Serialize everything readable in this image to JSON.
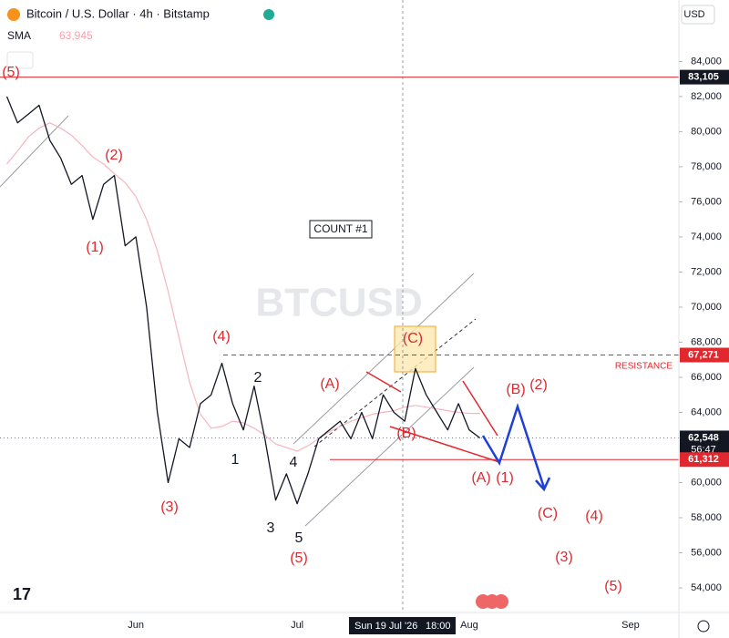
{
  "chart_data": {
    "type": "line",
    "title": "Bitcoin / U.S. Dollar · 4h · Bitstamp",
    "watermark": "BTCUSD",
    "currency": "USD",
    "categories": [
      null,
      null,
      null,
      null,
      null,
      null,
      null,
      null,
      null,
      null,
      null,
      null,
      "Jun",
      null,
      null,
      null,
      null,
      null,
      null,
      null,
      null,
      null,
      null,
      null,
      null,
      null,
      null,
      "Jul",
      null,
      null,
      null,
      null,
      null,
      null,
      null,
      null,
      null,
      null,
      null,
      null,
      null,
      null,
      null,
      "Aug",
      null,
      null,
      null,
      null,
      null,
      null,
      null,
      null,
      null,
      null,
      null,
      null,
      null,
      null,
      "Sep",
      null,
      null,
      null,
      null
    ],
    "series": [
      {
        "color": "#131722",
        "values": [
          82000,
          80500,
          81000,
          81500,
          79500,
          78500,
          77000,
          77500,
          75000,
          77000,
          77500,
          73500,
          74000,
          70000,
          64000,
          60000,
          62500,
          62000,
          64500,
          65000,
          66800,
          64500,
          63000,
          65500,
          62500,
          59000,
          60500,
          58800,
          60500,
          62500,
          63000,
          63500,
          62500,
          64000,
          62500,
          65000,
          64000,
          63500,
          66500,
          65000,
          64000,
          63000,
          64500,
          63000,
          62548,
          null,
          null,
          null,
          null,
          null,
          null,
          null,
          null,
          null,
          null,
          null,
          null,
          null,
          null,
          null,
          null,
          null,
          null
        ]
      },
      {
        "name": "SMA",
        "color": "#f7b5c0",
        "last_label": "63,945",
        "last_value": 63945,
        "values": [
          78150,
          78900,
          79700,
          80200,
          80500,
          80200,
          79800,
          79200,
          78550,
          78150,
          77600,
          77100,
          76300,
          75000,
          73200,
          70900,
          68300,
          65700,
          63900,
          63100,
          63200,
          63500,
          63400,
          63100,
          62700,
          62200,
          62000,
          61800,
          62100,
          62500,
          62900,
          63200,
          63500,
          63700,
          63900,
          64000,
          64100,
          64300,
          64400,
          64300,
          64200,
          64100,
          64000,
          63950,
          63945,
          null,
          null,
          null,
          null,
          null,
          null,
          null,
          null,
          null,
          null,
          null,
          null,
          null,
          null,
          null,
          null,
          null,
          null
        ]
      }
    ],
    "ylim": [
      52600,
      87500
    ],
    "yticks": [
      {
        "value": 54000,
        "label": "54,000"
      },
      {
        "value": 56000,
        "label": "56,000"
      },
      {
        "value": 58000,
        "label": "58,000"
      },
      {
        "value": 60000,
        "label": "60,000"
      },
      {
        "value": 64000,
        "label": "64,000"
      },
      {
        "value": 66000,
        "label": "66,000"
      },
      {
        "value": 68000,
        "label": "68,000"
      },
      {
        "value": 70000,
        "label": "70,000"
      },
      {
        "value": 72000,
        "label": "72,000"
      },
      {
        "value": 74000,
        "label": "74,000"
      },
      {
        "value": 76000,
        "label": "76,000"
      },
      {
        "value": 78000,
        "label": "78,000"
      },
      {
        "value": 80000,
        "label": "80,000"
      },
      {
        "value": 82000,
        "label": "82,000"
      },
      {
        "value": 84000,
        "label": "84,000"
      }
    ],
    "levels": [
      {
        "value": 83105,
        "label": "83,105",
        "color": "#e0282e",
        "tag": "#131722",
        "style": "solid"
      },
      {
        "value": 67271,
        "label": "67,271",
        "color": "#e0282e",
        "tag": "#e0282e",
        "style": "dashed"
      },
      {
        "value": 62548,
        "label": "62,548",
        "color": "#787b86",
        "tag": "#131722",
        "style": "dotted",
        "countdown": "56:47"
      },
      {
        "value": 61312,
        "label": "61,312",
        "color": "#e0282e",
        "tag": "#e0282e",
        "style": "solid"
      }
    ],
    "count_label": "COUNT #1",
    "resistance_label": "RESISTANCE",
    "crosshair": {
      "date": "Sun 19 Jul '26",
      "time": "18:00"
    },
    "annotations": [
      {
        "text": "(5)",
        "color": "#e0282e"
      },
      {
        "text": "(2)",
        "color": "#e0282e"
      },
      {
        "text": "(1)",
        "color": "#e0282e"
      },
      {
        "text": "(3)",
        "color": "#e0282e"
      },
      {
        "text": "(4)",
        "color": "#e0282e"
      },
      {
        "text": "2",
        "color": "#131722"
      },
      {
        "text": "1",
        "color": "#131722"
      },
      {
        "text": "4",
        "color": "#131722"
      },
      {
        "text": "3",
        "color": "#131722"
      },
      {
        "text": "5",
        "color": "#131722"
      },
      {
        "text": "(5)",
        "color": "#e0282e"
      },
      {
        "text": "(A)",
        "color": "#e0282e"
      },
      {
        "text": "(C)",
        "color": "#e0282e"
      },
      {
        "text": "(B)",
        "color": "#e0282e"
      },
      {
        "text": "(A)",
        "color": "#e0282e"
      },
      {
        "text": "(1)",
        "color": "#e0282e"
      },
      {
        "text": "(B)",
        "color": "#e0282e"
      },
      {
        "text": "(2)",
        "color": "#e0282e"
      },
      {
        "text": "(C)",
        "color": "#e0282e"
      },
      {
        "text": "(4)",
        "color": "#e0282e"
      },
      {
        "text": "(3)",
        "color": "#e0282e"
      },
      {
        "text": "(5)",
        "color": "#e0282e"
      }
    ]
  }
}
